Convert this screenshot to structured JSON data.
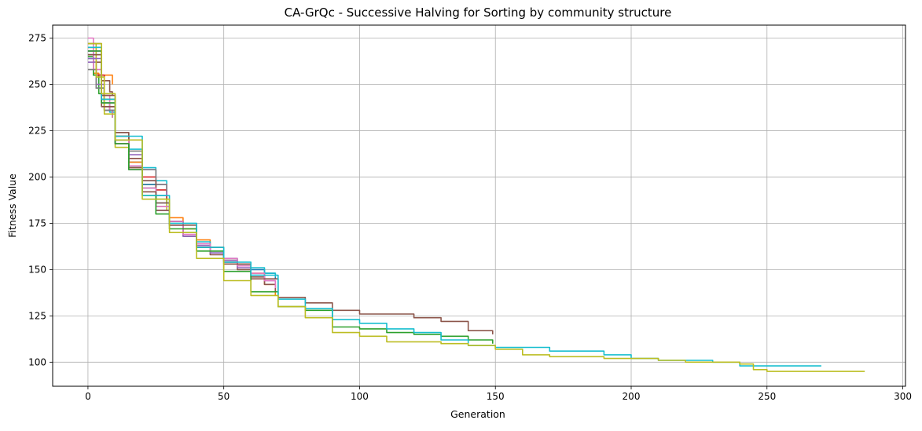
{
  "chart_data": {
    "type": "line",
    "title": "CA-GrQc - Successive Halving for Sorting by community structure",
    "xlabel": "Generation",
    "ylabel": "Fitness Value",
    "xlim": [
      -13,
      301
    ],
    "ylim": [
      87,
      282
    ],
    "xticks": [
      0,
      50,
      100,
      150,
      200,
      250,
      300
    ],
    "yticks": [
      100,
      125,
      150,
      175,
      200,
      225,
      250,
      275
    ],
    "grid": true,
    "legend": "none",
    "series": [
      {
        "color": "#17becf",
        "x": [
          0,
          2,
          5,
          8,
          10,
          15,
          20,
          25,
          29
        ],
        "y": [
          268,
          255,
          240,
          235,
          222,
          215,
          205,
          198,
          196
        ]
      },
      {
        "color": "#ff7f0e",
        "x": [
          0,
          2,
          4,
          6,
          8,
          9
        ],
        "y": [
          266,
          256,
          255,
          255,
          255,
          250
        ]
      },
      {
        "color": "#8c564b",
        "x": [
          0,
          2,
          5,
          8,
          9
        ],
        "y": [
          268,
          262,
          252,
          246,
          244
        ]
      },
      {
        "color": "#2ca02c",
        "x": [
          0,
          2,
          4,
          6,
          8,
          9
        ],
        "y": [
          265,
          255,
          245,
          240,
          236,
          232
        ]
      },
      {
        "color": "#e377c2",
        "x": [
          0,
          2,
          5,
          8,
          9
        ],
        "y": [
          275,
          258,
          244,
          236,
          232
        ]
      },
      {
        "color": "#1f77b4",
        "x": [
          0,
          3,
          6,
          10,
          15,
          20,
          25,
          29
        ],
        "y": [
          264,
          248,
          236,
          222,
          206,
          198,
          190,
          186
        ]
      },
      {
        "color": "#d62728",
        "x": [
          0,
          3,
          6,
          10,
          15,
          20,
          25,
          29
        ],
        "y": [
          270,
          255,
          238,
          220,
          210,
          200,
          193,
          188
        ]
      },
      {
        "color": "#9467bd",
        "x": [
          0,
          3,
          6,
          10,
          15,
          20,
          25,
          29
        ],
        "y": [
          262,
          250,
          236,
          222,
          212,
          204,
          196,
          190
        ]
      },
      {
        "color": "#7f7f7f",
        "x": [
          0,
          3,
          6,
          10,
          15,
          20,
          25,
          29
        ],
        "y": [
          258,
          248,
          236,
          224,
          214,
          204,
          196,
          192
        ]
      },
      {
        "color": "#bcbd22",
        "x": [
          0,
          3,
          6,
          10,
          15,
          20,
          25,
          29
        ],
        "y": [
          272,
          254,
          234,
          216,
          205,
          196,
          188,
          182
        ]
      },
      {
        "color": "#1f77b4",
        "x": [
          0,
          5,
          10,
          15,
          20,
          25,
          30,
          35,
          40,
          45,
          50,
          55,
          60,
          65,
          69
        ],
        "y": [
          268,
          242,
          222,
          208,
          196,
          186,
          176,
          168,
          163,
          159,
          155,
          152,
          150,
          148,
          145
        ]
      },
      {
        "color": "#ff7f0e",
        "x": [
          0,
          5,
          10,
          15,
          20,
          25,
          30,
          35,
          40,
          45,
          50,
          55,
          60,
          65,
          69
        ],
        "y": [
          270,
          242,
          222,
          208,
          194,
          184,
          178,
          172,
          166,
          160,
          155,
          152,
          148,
          142,
          136
        ]
      },
      {
        "color": "#17becf",
        "x": [
          0,
          5,
          10,
          15,
          20,
          25,
          30,
          35,
          40,
          45,
          50,
          55,
          60,
          65,
          69
        ],
        "y": [
          266,
          240,
          220,
          206,
          194,
          184,
          176,
          170,
          165,
          160,
          156,
          153,
          151,
          148,
          146
        ]
      },
      {
        "color": "#8c564b",
        "x": [
          0,
          5,
          10,
          15,
          20,
          25,
          30,
          35,
          40,
          45,
          50,
          55,
          60,
          65,
          69
        ],
        "y": [
          272,
          244,
          224,
          210,
          198,
          186,
          176,
          168,
          162,
          158,
          154,
          150,
          146,
          142,
          138
        ]
      },
      {
        "color": "#9467bd",
        "x": [
          0,
          5,
          10,
          15,
          20,
          25,
          30,
          35,
          40,
          45,
          50,
          55,
          60,
          65,
          69
        ],
        "y": [
          264,
          238,
          218,
          204,
          192,
          182,
          174,
          168,
          163,
          159,
          155,
          151,
          147,
          144,
          142
        ]
      },
      {
        "color": "#e377c2",
        "x": [
          0,
          5,
          10,
          15,
          20,
          25,
          30,
          35,
          40,
          45,
          50,
          55,
          60,
          65,
          69
        ],
        "y": [
          268,
          240,
          220,
          206,
          194,
          184,
          176,
          169,
          164,
          160,
          156,
          152,
          148,
          144,
          140
        ]
      },
      {
        "color": "#8c564b",
        "x": [
          0,
          5,
          10,
          15,
          20,
          25,
          30,
          40,
          50,
          60,
          70,
          80,
          90,
          100,
          110,
          120,
          130,
          140,
          149
        ],
        "y": [
          266,
          238,
          218,
          205,
          192,
          182,
          174,
          162,
          153,
          145,
          135,
          132,
          128,
          126,
          126,
          124,
          122,
          117,
          115
        ]
      },
      {
        "color": "#2ca02c",
        "x": [
          0,
          5,
          10,
          15,
          20,
          25,
          30,
          40,
          50,
          60,
          70,
          80,
          90,
          100,
          110,
          120,
          130,
          140,
          149
        ],
        "y": [
          268,
          240,
          218,
          204,
          190,
          180,
          172,
          160,
          149,
          138,
          130,
          128,
          119,
          118,
          116,
          115,
          114,
          112,
          110
        ]
      },
      {
        "color": "#17becf",
        "x": [
          0,
          5,
          10,
          20,
          30,
          40,
          50,
          60,
          70,
          80,
          90,
          100,
          110,
          120,
          130,
          140,
          150,
          160,
          170,
          180,
          190,
          200,
          210,
          220,
          230,
          240,
          250,
          260,
          270
        ],
        "y": [
          270,
          242,
          222,
          190,
          175,
          162,
          154,
          147,
          134,
          129,
          123,
          121,
          118,
          116,
          112,
          109,
          108,
          108,
          106,
          106,
          104,
          102,
          101,
          101,
          100,
          98,
          98,
          98,
          98
        ]
      },
      {
        "color": "#bcbd22",
        "x": [
          0,
          5,
          10,
          20,
          30,
          40,
          50,
          60,
          70,
          80,
          90,
          100,
          110,
          120,
          130,
          140,
          150,
          160,
          170,
          180,
          190,
          200,
          210,
          220,
          230,
          240,
          245,
          250,
          260,
          270,
          280,
          286
        ],
        "y": [
          272,
          245,
          220,
          188,
          170,
          156,
          144,
          136,
          130,
          124,
          116,
          114,
          111,
          111,
          110,
          109,
          107,
          104,
          103,
          103,
          102,
          102,
          101,
          100,
          100,
          99,
          96,
          95,
          95,
          95,
          95,
          95
        ]
      }
    ]
  }
}
